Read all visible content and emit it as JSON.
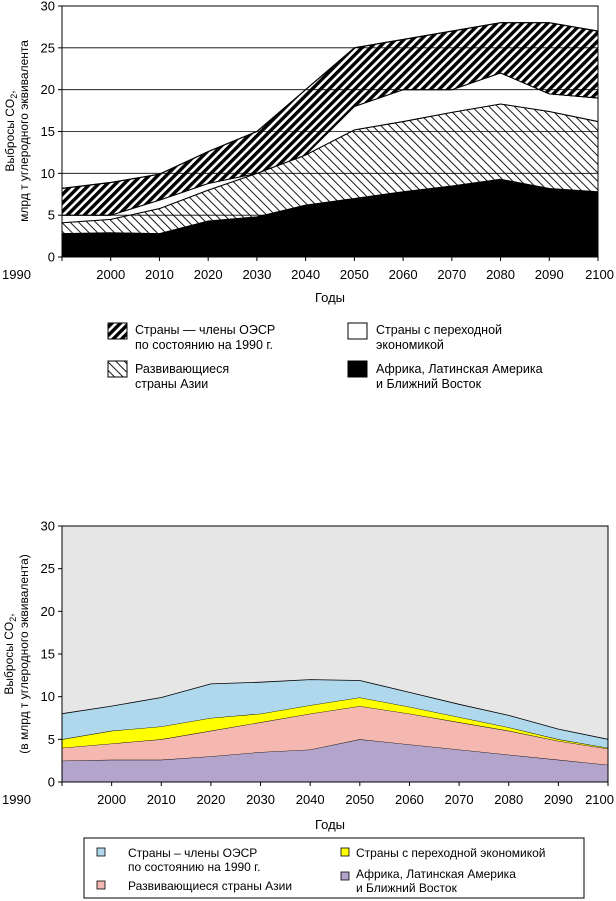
{
  "chart_data": [
    {
      "type": "area",
      "stacked": true,
      "title": "",
      "xlabel": "Годы",
      "ylabel_line1": "Выбросы CO",
      "ylabel_sub": "2",
      "ylabel_line1_end": ",",
      "ylabel_line2": "млрд т углеродного эквивалента",
      "ylim": [
        0,
        30
      ],
      "yticks": [
        "0",
        "5",
        "10",
        "15",
        "20",
        "25",
        "30"
      ],
      "x": [
        1990,
        2000,
        2010,
        2020,
        2030,
        2040,
        2050,
        2060,
        2070,
        2080,
        2090,
        2100
      ],
      "xtick_labels": [
        "1990",
        "2000",
        "2010",
        "2020",
        "2030",
        "2040",
        "2050",
        "2060",
        "2070",
        "2080",
        "2090",
        "2100"
      ],
      "grid": "horizontal",
      "legend_position": "below",
      "series": [
        {
          "name": "Африка, Латинская Америка и Ближний Восток",
          "fill": "solid-black",
          "values": [
            2.8,
            2.9,
            2.8,
            4.3,
            4.8,
            6.2,
            7.0,
            7.8,
            8.5,
            9.3,
            8.2,
            7.8
          ]
        },
        {
          "name": "Развивающиеся страны Азии",
          "fill": "hatch-light",
          "values": [
            1.3,
            1.6,
            3.0,
            3.7,
            5.2,
            6.0,
            8.2,
            8.4,
            8.8,
            9.0,
            9.2,
            8.4
          ]
        },
        {
          "name": "Страны с переходной экономикой",
          "fill": "white",
          "values": [
            0.9,
            0.5,
            1.0,
            0.8,
            0.0,
            0.0,
            2.8,
            3.8,
            2.7,
            3.7,
            2.1,
            2.8
          ]
        },
        {
          "name": "Страны — члены ОЭСР по состоянию на 1990 г.",
          "fill": "hatch-dark",
          "values": [
            3.2,
            3.9,
            3.1,
            3.8,
            5.0,
            7.8,
            7.0,
            6.0,
            7.0,
            6.0,
            8.5,
            8.0
          ]
        }
      ],
      "legend": [
        {
          "line1": "Страны — члены ОЭСР",
          "line2": "по состоянию на 1990 г.",
          "swatch": "hatch-dark"
        },
        {
          "line1": "Страны с переходной",
          "line2": "экономикой",
          "swatch": "white"
        },
        {
          "line1": "Развивающиеся",
          "line2": "страны Азии",
          "swatch": "hatch-light"
        },
        {
          "line1": "Африка, Латинская Америка",
          "line2": "и Ближний Восток",
          "swatch": "solid-black"
        }
      ]
    },
    {
      "type": "area",
      "stacked": true,
      "title": "",
      "xlabel": "Годы",
      "ylabel_line1": "Выбросы CO",
      "ylabel_sub": "2",
      "ylabel_line1_end": ",",
      "ylabel_line2": "(в млрд т углеродного эквивалента)",
      "ylim": [
        0,
        30
      ],
      "yticks": [
        "0",
        "5",
        "10",
        "15",
        "20",
        "25",
        "30"
      ],
      "x": [
        1990,
        2000,
        2010,
        2020,
        2030,
        2040,
        2050,
        2060,
        2070,
        2080,
        2090,
        2100
      ],
      "xtick_labels": [
        "1990",
        "2000",
        "2010",
        "2020",
        "2030",
        "2040",
        "2050",
        "2060",
        "2070",
        "2080",
        "2090",
        "2100"
      ],
      "grid": "none",
      "background": "#e6e6e6",
      "legend_position": "below",
      "series": [
        {
          "name": "Африка, Латинская Америка и Ближний Восток",
          "color": "#b3a4cc",
          "values": [
            2.5,
            2.6,
            2.6,
            3.0,
            3.5,
            3.8,
            5.0,
            4.4,
            3.8,
            3.2,
            2.6,
            2.0
          ]
        },
        {
          "name": "Развивающиеся страны Азии",
          "color": "#f5b8b0",
          "values": [
            1.5,
            1.9,
            2.4,
            3.0,
            3.5,
            4.2,
            3.9,
            3.6,
            3.2,
            2.8,
            2.2,
            1.9
          ]
        },
        {
          "name": "Страны с переходной экономикой",
          "color": "#ffff00",
          "values": [
            1.0,
            1.5,
            1.5,
            1.5,
            1.0,
            1.0,
            1.0,
            0.8,
            0.6,
            0.4,
            0.2,
            0.1
          ]
        },
        {
          "name": "Страны – члены ОЭСР по состоянию на 1990 г.",
          "color": "#b0d8ec",
          "values": [
            3.0,
            2.9,
            3.4,
            4.0,
            3.7,
            3.0,
            2.0,
            1.7,
            1.5,
            1.4,
            1.2,
            1.0
          ]
        }
      ],
      "legend": [
        {
          "line1": "Страны – члены ОЭСР",
          "line2": "по состоянию на 1990 г.",
          "color": "#b0d8ec"
        },
        {
          "line1": "Страны с переходной экономикой",
          "line2": "",
          "color": "#ffff00"
        },
        {
          "line1": "Развивающиеся страны Азии",
          "line2": "",
          "color": "#f5b8b0"
        },
        {
          "line1": "Африка, Латинская Америка",
          "line2": "и Ближний Восток",
          "color": "#b3a4cc"
        }
      ]
    }
  ]
}
